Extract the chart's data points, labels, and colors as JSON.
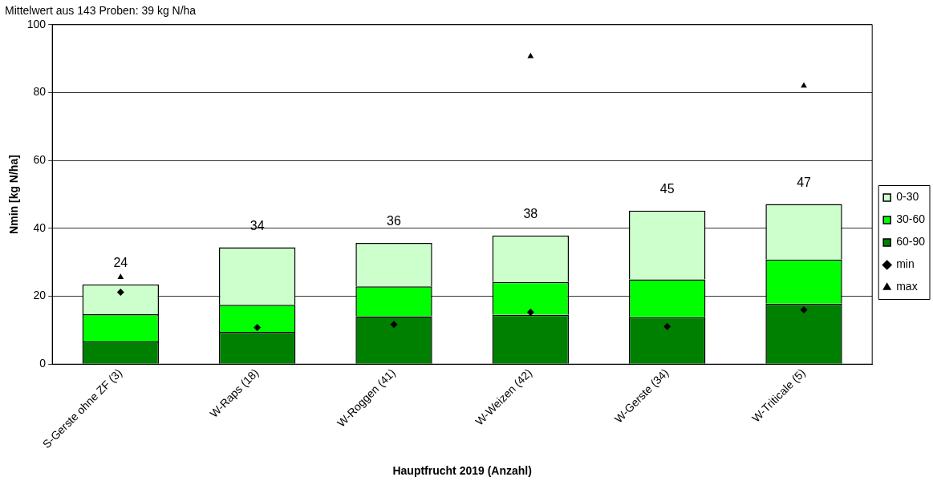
{
  "chart_data": {
    "type": "bar",
    "title": "Mittelwert aus 143 Proben: 39 kg N/ha",
    "xlabel": "Hauptfrucht 2019 (Anzahl)",
    "ylabel": "Nmin [kg N/ha]",
    "categories": [
      "S-Gerste ohne ZF (3)",
      "W-Raps (18)",
      "W-Roggen (41)",
      "W-Weizen (42)",
      "W-Gerste (34)",
      "W-Triticale (5)"
    ],
    "stacked": true,
    "series": [
      {
        "name": "60-90",
        "color": "#008000",
        "values": [
          6.7,
          9.5,
          14.1,
          14.5,
          13.8,
          17.8
        ]
      },
      {
        "name": "30-60",
        "color": "#00ff00",
        "values": [
          8.0,
          8.0,
          8.8,
          9.7,
          11.2,
          13.0
        ]
      },
      {
        "name": "0-30",
        "color": "#ccffcc",
        "values": [
          8.8,
          16.9,
          12.8,
          13.7,
          20.2,
          16.4
        ]
      },
      {
        "name": "min",
        "type": "scatter",
        "marker": "diamond",
        "color": "#000000",
        "x": [
          "S-Gerste ohne ZF (3)",
          "W-Raps (18)",
          "W-Roggen (41)",
          "W-Weizen (42)",
          "W-Gerste (34)",
          "W-Triticale (5)"
        ],
        "values": [
          21.2,
          10.8,
          11.7,
          15.3,
          11.1,
          16.0
        ]
      },
      {
        "name": "max",
        "type": "scatter",
        "marker": "triangle",
        "color": "#000000",
        "x": [
          "S-Gerste ohne ZF (3)",
          "W-Raps (18)",
          "W-Roggen (41)",
          "W-Weizen (42)",
          "W-Gerste (34)",
          "W-Triticale (5)"
        ],
        "values": [
          25.6,
          null,
          null,
          90.7,
          null,
          82.0
        ]
      }
    ],
    "totals": [
      "24",
      "34",
      "36",
      "38",
      "45",
      "47"
    ],
    "ylim": [
      0,
      100
    ],
    "yticks": [
      0,
      20,
      40,
      60,
      80,
      100
    ],
    "grid": "y",
    "legend": "right"
  }
}
